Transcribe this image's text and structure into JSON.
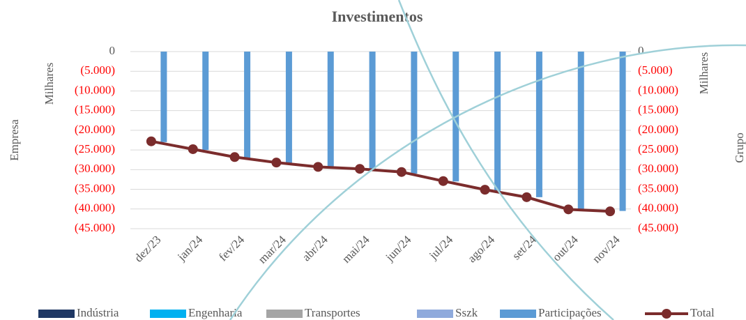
{
  "chart_data": {
    "type": "bar",
    "title": "Investimentos",
    "y_axis_title": "Empresa",
    "y_axis_unit": "Milhares",
    "y2_axis_title": "Grupo",
    "y2_axis_unit": "Milhares",
    "categories": [
      "dez/23",
      "jan/24",
      "fev/24",
      "mar/24",
      "abr/24",
      "mai/24",
      "jun/24",
      "jul/24",
      "ago/24",
      "set/24",
      "out/24",
      "nov/24"
    ],
    "series": [
      {
        "name": "Indústria",
        "type": "bar",
        "color": "#1f3864",
        "values": [
          0,
          0,
          0,
          0,
          0,
          0,
          0,
          0,
          0,
          0,
          0,
          0
        ]
      },
      {
        "name": "Engenharia",
        "type": "bar",
        "color": "#00b0f0",
        "values": [
          0,
          0,
          0,
          0,
          0,
          0,
          0,
          0,
          0,
          0,
          0,
          0
        ]
      },
      {
        "name": "Transportes",
        "type": "bar",
        "color": "#a5a5a5",
        "values": [
          0,
          0,
          0,
          0,
          0,
          0,
          0,
          0,
          0,
          0,
          0,
          0
        ]
      },
      {
        "name": "Sszk",
        "type": "bar",
        "color": "#8faadc",
        "values": [
          0,
          0,
          0,
          0,
          0,
          0,
          0,
          0,
          0,
          0,
          0,
          0
        ]
      },
      {
        "name": "Participações",
        "type": "bar",
        "color": "#5b9bd5",
        "values": [
          -23000,
          -25000,
          -27000,
          -28500,
          -29500,
          -30000,
          -31000,
          -33000,
          -35500,
          -37000,
          -40000,
          -40500
        ]
      },
      {
        "name": "Total",
        "type": "line",
        "axis": "y2",
        "color": "#7b2c2c",
        "values": [
          -22800,
          -24800,
          -26800,
          -28200,
          -29300,
          -29800,
          -30600,
          -32900,
          -35100,
          -37000,
          -40100,
          -40600
        ]
      }
    ],
    "ylim": [
      -45000,
      0
    ],
    "yticks": [
      0,
      {
        "value": -5000,
        "label": "(5.000)"
      },
      {
        "value": -10000,
        "label": "(10.000)"
      },
      {
        "value": -15000,
        "label": "(15.000)"
      },
      {
        "value": -20000,
        "label": "(20.000)"
      },
      {
        "value": -25000,
        "label": "(25.000)"
      },
      {
        "value": -30000,
        "label": "(30.000)"
      },
      {
        "value": -35000,
        "label": "(35.000)"
      },
      {
        "value": -40000,
        "label": "(40.000)"
      },
      {
        "value": -45000,
        "label": "(45.000)"
      }
    ],
    "y2lim": [
      -45000,
      0
    ],
    "y2ticks": [
      0,
      {
        "value": -5000,
        "label": "(5.000)"
      },
      {
        "value": -10000,
        "label": "(10.000)"
      },
      {
        "value": -15000,
        "label": "(15.000)"
      },
      {
        "value": -20000,
        "label": "(20.000)"
      },
      {
        "value": -25000,
        "label": "(25.000)"
      },
      {
        "value": -30000,
        "label": "(30.000)"
      },
      {
        "value": -35000,
        "label": "(35.000)"
      },
      {
        "value": -40000,
        "label": "(40.000)"
      },
      {
        "value": -45000,
        "label": "(45.000)"
      }
    ],
    "grid": true
  }
}
